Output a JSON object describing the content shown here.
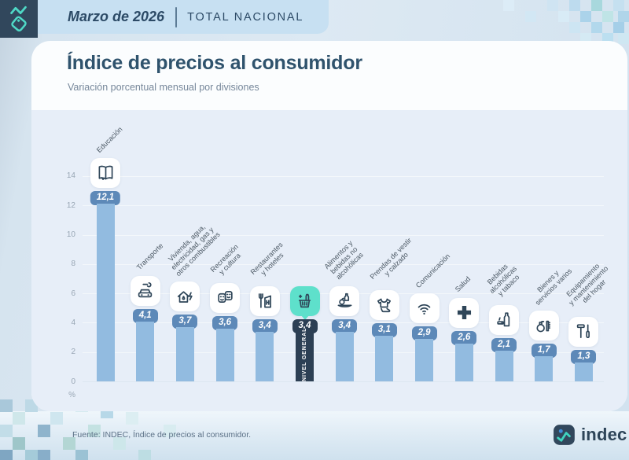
{
  "header": {
    "logo": "indec-tag-logo",
    "period": "Marzo de 2026",
    "scope": "TOTAL NACIONAL"
  },
  "title": "Índice de precios al consumidor",
  "subtitle": "Variación porcentual mensual por divisiones",
  "chart_data": {
    "type": "bar",
    "title": "Índice de precios al consumidor",
    "subtitle": "Variación porcentual mensual por divisiones",
    "xlabel": "",
    "ylabel": "%",
    "ylim": [
      0,
      14
    ],
    "yticks": [
      0,
      2,
      4,
      6,
      8,
      10,
      12,
      14
    ],
    "grid": true,
    "legend": "none",
    "categories": [
      "Educación",
      "Transporte",
      "Vivienda, agua, electricidad, gas y otros combustibles",
      "Recreación y cultura",
      "Restaurantes y hoteles",
      "Nivel General",
      "Alimentos y bebidas no alcohólicas",
      "Prendas de vestir y calzado",
      "Comunicación",
      "Salud",
      "Bebidas alcohólicas y tabaco",
      "Bienes y servicios varios",
      "Equipamiento y mantenimiento del hogar"
    ],
    "values": [
      12.1,
      4.1,
      3.7,
      3.6,
      3.4,
      3.4,
      3.4,
      3.1,
      2.9,
      2.6,
      2.1,
      1.7,
      1.3
    ],
    "series": [
      {
        "name": "Educación",
        "value": 12.1,
        "display": "12,1",
        "icon": "book-icon",
        "label_lines": [
          "Educación"
        ],
        "highlight": false
      },
      {
        "name": "Transporte",
        "value": 4.1,
        "display": "4,1",
        "icon": "car-wrench-icon",
        "label_lines": [
          "Transporte"
        ],
        "highlight": false
      },
      {
        "name": "Vivienda, agua, electricidad, gas y otros combustibles",
        "value": 3.7,
        "display": "3,7",
        "icon": "house-energy-icon",
        "label_lines": [
          "Vivienda, agua,",
          "electricidad, gas y",
          "otros combustibles"
        ],
        "highlight": false
      },
      {
        "name": "Recreación y cultura",
        "value": 3.6,
        "display": "3,6",
        "icon": "theater-masks-icon",
        "label_lines": [
          "Recreación",
          "y cultura"
        ],
        "highlight": false
      },
      {
        "name": "Restaurantes y hoteles",
        "value": 3.4,
        "display": "3,4",
        "icon": "restaurant-hotel-icon",
        "label_lines": [
          "Restaurantes",
          "y hoteles"
        ],
        "highlight": false
      },
      {
        "name": "Nivel General",
        "value": 3.4,
        "display": "3,4",
        "icon": "shopping-basket-icon",
        "label_lines": [],
        "highlight": true,
        "bar_label": "NIVEL GENERAL"
      },
      {
        "name": "Alimentos y bebidas no alcohólicas",
        "value": 3.4,
        "display": "3,4",
        "icon": "food-beverage-icon",
        "label_lines": [
          "Alimentos y",
          "bebidas no",
          "alcohólicas"
        ],
        "highlight": false
      },
      {
        "name": "Prendas de vestir y calzado",
        "value": 3.1,
        "display": "3,1",
        "icon": "clothing-icon",
        "label_lines": [
          "Prendas de vestir",
          "y calzado"
        ],
        "highlight": false
      },
      {
        "name": "Comunicación",
        "value": 2.9,
        "display": "2,9",
        "icon": "wifi-icon",
        "label_lines": [
          "Comunicación"
        ],
        "highlight": false
      },
      {
        "name": "Salud",
        "value": 2.6,
        "display": "2,6",
        "icon": "health-cross-icon",
        "label_lines": [
          "Salud"
        ],
        "highlight": false
      },
      {
        "name": "Bebidas alcohólicas y tabaco",
        "value": 2.1,
        "display": "2,1",
        "icon": "alcohol-tobacco-icon",
        "label_lines": [
          "Bebidas",
          "alcohólicas",
          "y tabaco"
        ],
        "highlight": false
      },
      {
        "name": "Bienes y servicios varios",
        "value": 1.7,
        "display": "1,7",
        "icon": "goods-services-icon",
        "label_lines": [
          "Bienes y",
          "servicios varios"
        ],
        "highlight": false
      },
      {
        "name": "Equipamiento y mantenimiento del hogar",
        "value": 1.3,
        "display": "1,3",
        "icon": "home-tools-icon",
        "label_lines": [
          "Equipamiento",
          "y mantenimiento",
          "del hogar"
        ],
        "highlight": false
      }
    ]
  },
  "footer": {
    "source": "Fuente: INDEC, Índice de precios al consumidor.",
    "brand": "indec"
  },
  "colors": {
    "accent_teal": "#5ee0cb",
    "bar_blue": "#92bbe0",
    "badge_blue": "#5d89b8",
    "dark_navy": "#2c3f54",
    "banner_blue": "#c7e0f2",
    "chart_bg": "#e7eef8",
    "title_blue": "#2f536d"
  }
}
